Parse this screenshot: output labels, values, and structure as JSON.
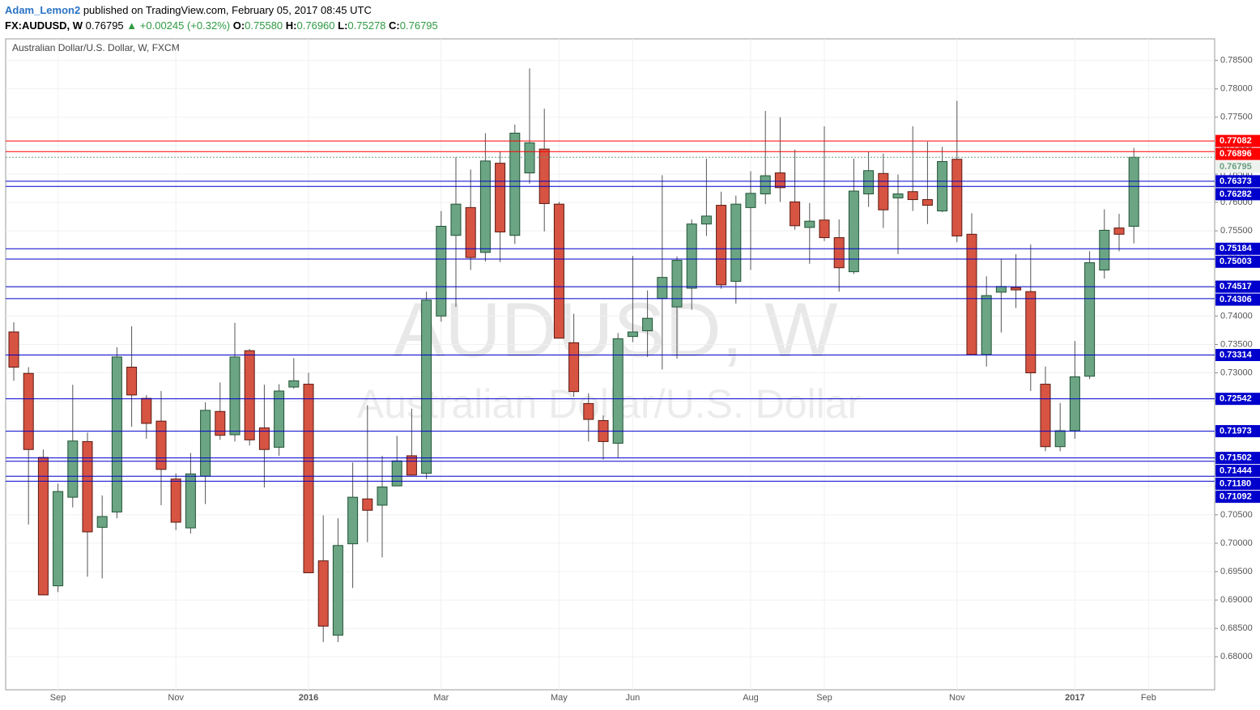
{
  "header": {
    "author": "Adam_Lemon2",
    "published": "published on TradingView.com, February 05, 2017 08:45 UTC",
    "symbol": "FX:AUDUSD, W",
    "last": "0.76795",
    "change": "▲ +0.00245 (+0.32%)",
    "ohlc": [
      {
        "label": "O:",
        "value": "0.75580"
      },
      {
        "label": "H:",
        "value": "0.76960"
      },
      {
        "label": "L:",
        "value": "0.75278"
      },
      {
        "label": "C:",
        "value": "0.76795"
      }
    ]
  },
  "chart_data": {
    "type": "candlestick",
    "title": "Australian Dollar/U.S. Dollar, W, FXCM",
    "watermark": "AUDUSD, W",
    "watermark_subtitle": "Australian Dollar/U.S. Dollar",
    "up_color": "#6ba583",
    "down_color": "#d75442",
    "categories": [
      null,
      null,
      null,
      "Sep",
      null,
      null,
      null,
      null,
      null,
      null,
      null,
      "Nov",
      null,
      null,
      null,
      null,
      null,
      null,
      null,
      null,
      "2016",
      null,
      null,
      null,
      null,
      null,
      null,
      null,
      null,
      "Mar",
      null,
      null,
      null,
      null,
      null,
      null,
      null,
      "May",
      null,
      null,
      null,
      null,
      "Jun",
      null,
      null,
      null,
      null,
      null,
      null,
      null,
      "Aug",
      null,
      null,
      null,
      null,
      "Sep",
      null,
      null,
      null,
      null,
      null,
      null,
      null,
      null,
      "Nov",
      null,
      null,
      null,
      null,
      null,
      null,
      null,
      "2017",
      null,
      null,
      null,
      null,
      "Feb"
    ],
    "open": [
      0.7372,
      0.7299,
      0.7151,
      0.6925,
      0.7081,
      0.7179,
      0.7028,
      0.7055,
      0.731,
      0.7255,
      0.7215,
      0.7113,
      0.7027,
      0.7118,
      0.7232,
      0.7191,
      0.7339,
      0.7203,
      0.7169,
      0.7275,
      0.728,
      0.6969,
      0.6838,
      0.6999,
      0.7078,
      0.7067,
      0.7101,
      0.7154,
      0.7123,
      0.74,
      0.7542,
      0.7591,
      0.7512,
      0.7669,
      0.7542,
      0.7652,
      0.7694,
      0.7597,
      0.7353,
      0.7246,
      0.7216,
      0.7176,
      0.7364,
      0.7374,
      0.7431,
      0.7416,
      0.7449,
      0.7562,
      0.7595,
      0.7461,
      0.7591,
      0.7615,
      0.7652,
      0.7601,
      0.7556,
      0.7569,
      0.7538,
      0.7478,
      0.7615,
      0.7651,
      0.7608,
      0.7619,
      0.7605,
      0.7585,
      0.7676,
      0.7544,
      0.7332,
      0.7442,
      0.745,
      0.7443,
      0.728,
      0.717,
      0.7198,
      0.7294,
      0.7481,
      0.7555,
      0.7558,
      null
    ],
    "high": [
      0.7389,
      0.731,
      0.7165,
      0.7105,
      0.7279,
      0.7195,
      0.7084,
      0.7345,
      0.7382,
      0.7261,
      0.7268,
      0.7123,
      0.7159,
      0.7248,
      0.7283,
      0.7388,
      0.7342,
      0.7279,
      0.728,
      0.7326,
      0.73,
      0.7049,
      0.7044,
      0.7142,
      0.7243,
      0.7154,
      0.7189,
      0.7237,
      0.7443,
      0.7585,
      0.768,
      0.7658,
      0.7722,
      0.769,
      0.7737,
      0.7836,
      0.7765,
      0.7601,
      0.7404,
      0.7264,
      0.7225,
      0.737,
      0.7506,
      0.7445,
      0.7648,
      0.7505,
      0.757,
      0.7677,
      0.7619,
      0.7612,
      0.7655,
      0.7761,
      0.775,
      0.7693,
      0.7599,
      0.7734,
      0.757,
      0.7677,
      0.7689,
      0.7686,
      0.7649,
      0.7734,
      0.7707,
      0.7698,
      0.7779,
      0.7581,
      0.747,
      0.75,
      0.7509,
      0.7526,
      0.7311,
      0.7247,
      0.7356,
      0.7514,
      0.7588,
      0.758,
      0.7696,
      null
    ],
    "low": [
      0.7286,
      0.7033,
      0.6909,
      0.6914,
      0.7063,
      0.6941,
      0.6938,
      0.7044,
      0.7205,
      0.7184,
      0.7067,
      0.7023,
      0.7017,
      0.7069,
      0.7182,
      0.7179,
      0.7172,
      0.7098,
      0.7154,
      0.7272,
      0.6948,
      0.6826,
      0.6826,
      0.6921,
      0.7002,
      0.6975,
      0.7102,
      0.7119,
      0.7113,
      0.739,
      0.7416,
      0.7481,
      0.7496,
      0.7495,
      0.7527,
      0.7633,
      0.7549,
      0.7361,
      0.7258,
      0.7179,
      0.7147,
      0.7151,
      0.7354,
      0.7328,
      0.7306,
      0.7325,
      0.7411,
      0.7541,
      0.7448,
      0.7422,
      0.7481,
      0.7597,
      0.7601,
      0.7552,
      0.7492,
      0.7532,
      0.7443,
      0.7474,
      0.7592,
      0.7555,
      0.7509,
      0.7585,
      0.7562,
      0.7583,
      0.753,
      0.7332,
      0.7311,
      0.7371,
      0.7414,
      0.7268,
      0.7162,
      0.7162,
      0.7184,
      0.7289,
      0.7466,
      0.7514,
      0.7528,
      null
    ],
    "close": [
      0.731,
      0.7165,
      0.6909,
      0.7091,
      0.718,
      0.702,
      0.7047,
      0.7328,
      0.7261,
      0.7211,
      0.713,
      0.7037,
      0.7122,
      0.7234,
      0.719,
      0.7328,
      0.7182,
      0.7165,
      0.7268,
      0.7286,
      0.6948,
      0.6854,
      0.6996,
      0.7081,
      0.7058,
      0.7099,
      0.7145,
      0.712,
      0.7428,
      0.7558,
      0.7597,
      0.7503,
      0.7673,
      0.7548,
      0.7722,
      0.7705,
      0.7598,
      0.7361,
      0.7267,
      0.7218,
      0.7179,
      0.736,
      0.7372,
      0.7396,
      0.7468,
      0.7498,
      0.7562,
      0.7576,
      0.7455,
      0.7597,
      0.7616,
      0.7647,
      0.7626,
      0.7559,
      0.7567,
      0.7538,
      0.7485,
      0.762,
      0.7656,
      0.7587,
      0.7615,
      0.7605,
      0.7595,
      0.7672,
      0.7541,
      0.7332,
      0.7436,
      0.7452,
      0.7446,
      0.73,
      0.717,
      0.7198,
      0.7293,
      0.7494,
      0.7551,
      0.7544,
      0.76795,
      null
    ],
    "ylim": [
      0.6742,
      0.7888
    ],
    "yticks": [
      {
        "value": 0.68,
        "label": "0.68000"
      },
      {
        "value": 0.685,
        "label": "0.68500"
      },
      {
        "value": 0.69,
        "label": "0.69000"
      },
      {
        "value": 0.695,
        "label": "0.69500"
      },
      {
        "value": 0.7,
        "label": "0.70000"
      },
      {
        "value": 0.705,
        "label": "0.70500"
      },
      {
        "value": 0.71,
        "label": "0.71000"
      },
      {
        "value": 0.715,
        "label": "0.71500"
      },
      {
        "value": 0.72,
        "label": "0.72000"
      },
      {
        "value": 0.725,
        "label": "0.72500"
      },
      {
        "value": 0.73,
        "label": "0.73000"
      },
      {
        "value": 0.735,
        "label": "0.73500"
      },
      {
        "value": 0.74,
        "label": "0.74000"
      },
      {
        "value": 0.745,
        "label": "0.74500"
      },
      {
        "value": 0.75,
        "label": "0.75000"
      },
      {
        "value": 0.755,
        "label": "0.75500"
      },
      {
        "value": 0.76,
        "label": "0.76000"
      },
      {
        "value": 0.765,
        "label": "0.76500"
      },
      {
        "value": 0.77,
        "label": "0.77000"
      },
      {
        "value": 0.775,
        "label": "0.77500"
      },
      {
        "value": 0.78,
        "label": "0.78000"
      },
      {
        "value": 0.785,
        "label": "0.78500"
      }
    ],
    "grid": true,
    "levels": [
      {
        "value": 0.77082,
        "label": "0.77082",
        "color": "#ff0000"
      },
      {
        "value": 0.76896,
        "label": "0.76896",
        "color": "#ff0000"
      },
      {
        "value": 0.76795,
        "label": "0.76795",
        "color": "#6b9f80",
        "style": "dotted"
      },
      {
        "value": 0.76373,
        "label": "0.76373",
        "color": "#0000cc"
      },
      {
        "value": 0.76282,
        "label": "0.76282",
        "color": "#0000cc"
      },
      {
        "value": 0.75184,
        "label": "0.75184",
        "color": "#0000cc"
      },
      {
        "value": 0.75003,
        "label": "0.75003",
        "color": "#0000cc"
      },
      {
        "value": 0.74517,
        "label": "0.74517",
        "color": "#0000cc"
      },
      {
        "value": 0.74306,
        "label": "0.74306",
        "color": "#0000cc"
      },
      {
        "value": 0.73314,
        "label": "0.73314",
        "color": "#0000cc"
      },
      {
        "value": 0.72542,
        "label": "0.72542",
        "color": "#0000cc"
      },
      {
        "value": 0.71973,
        "label": "0.71973",
        "color": "#0000cc"
      },
      {
        "value": 0.71502,
        "label": "0.71502",
        "color": "#0000cc"
      },
      {
        "value": 0.71444,
        "label": "0.71444",
        "color": "#0000cc"
      },
      {
        "value": 0.7118,
        "label": "0.71180",
        "color": "#0000cc"
      },
      {
        "value": 0.71092,
        "label": "0.71092",
        "color": "#0000cc"
      }
    ]
  }
}
